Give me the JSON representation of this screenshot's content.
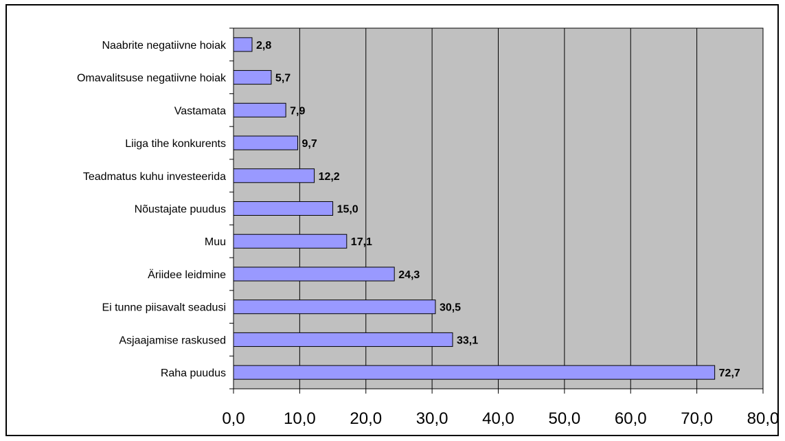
{
  "chart_data": {
    "type": "bar",
    "orientation": "horizontal",
    "categories": [
      "Naabrite negatiivne hoiak",
      "Omavalitsuse negatiivne hoiak",
      "Vastamata",
      "Liiga tihe konkurents",
      "Teadmatus kuhu investeerida",
      "Nõustajate puudus",
      "Muu",
      "Äriidee leidmine",
      "Ei tunne piisavalt seadusi",
      "Asjaajamise raskused",
      "Raha puudus"
    ],
    "values": [
      2.8,
      5.7,
      7.9,
      9.7,
      12.2,
      15.0,
      17.1,
      24.3,
      30.5,
      33.1,
      72.7
    ],
    "value_labels": [
      "2,8",
      "5,7",
      "7,9",
      "9,7",
      "12,2",
      "15,0",
      "17,1",
      "24,3",
      "30,5",
      "33,1",
      "72,7"
    ],
    "xlim": [
      0,
      80
    ],
    "xticks": [
      "0,0",
      "10,0",
      "20,0",
      "30,0",
      "40,0",
      "50,0",
      "60,0",
      "70,0",
      "80,0"
    ],
    "title": "",
    "xlabel": "",
    "ylabel": "",
    "grid": "vertical",
    "legend": "none",
    "colors": {
      "bar_fill": "#9999ff",
      "bar_stroke": "#000000",
      "plot_background": "#c0c0c0",
      "gridline": "#000000"
    }
  }
}
